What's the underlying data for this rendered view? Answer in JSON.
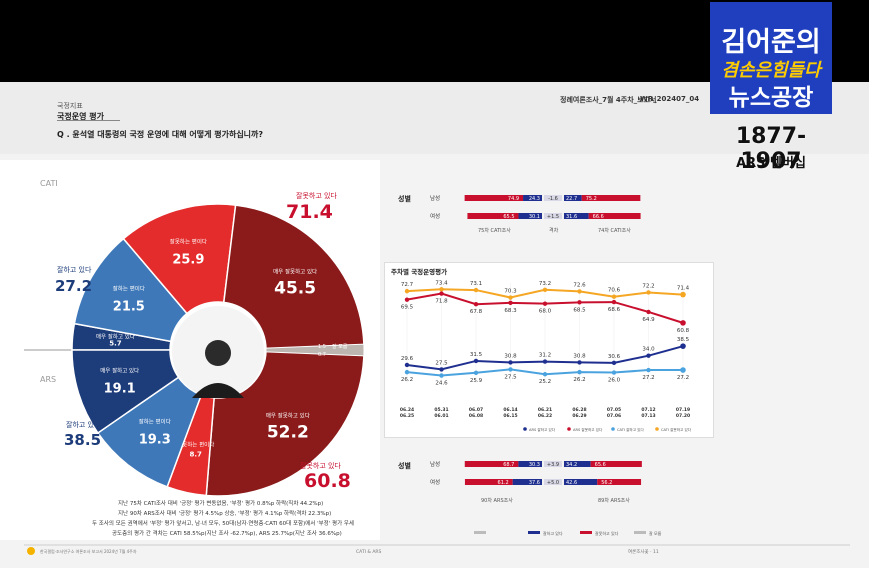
{
  "header": {
    "section": "국정지표",
    "title": "국정운영 평가",
    "question": "Q . 윤석열 대통령의 국정 운영에 대해 어떻게 평가하십니까?",
    "report_id": "정례여론조사_7월 4주차_보고서",
    "report_code": "WR_202407_04"
  },
  "brand": {
    "line1": "김어준의",
    "line2": "겸손은힘들다",
    "line3": "뉴스공장",
    "number": "1877-1907",
    "sub": "ARS 멤버십"
  },
  "donut": {
    "cati_label": "CATI",
    "ars_label": "ARS",
    "top_total_label": "잘못하고 있다",
    "top_total_value": "71.4",
    "bottom_total_label": "잘못하고 있다",
    "bottom_total_value": "60.8",
    "left_top_total_label": "잘하고 있다",
    "left_top_total_value": "27.2",
    "left_bottom_total_label": "잘하고 있다",
    "left_bottom_total_value": "38.5",
    "cati_segments": [
      {
        "label": "매우 잘못하고 있다",
        "value": "45.5",
        "color": "#8b1a1a"
      },
      {
        "label": "잘못하는 편이다",
        "value": "25.9",
        "color": "#e42c2c"
      },
      {
        "label": "잘하는 편이다",
        "value": "21.5",
        "color": "#3f78b9"
      },
      {
        "label": "매우 잘하고 있다",
        "value": "5.7",
        "color": "#1d3c7a"
      }
    ],
    "ars_segments": [
      {
        "label": "매우 잘못하고 있다",
        "value": "52.2",
        "color": "#8b1a1a"
      },
      {
        "label": "잘못하는 편이다",
        "value": "8.7",
        "color": "#e42c2c"
      },
      {
        "label": "잘하는 편이다",
        "value": "19.3",
        "color": "#3f78b9"
      },
      {
        "label": "매우 잘하고 있다",
        "value": "19.1",
        "color": "#1d3c7a"
      }
    ],
    "unknown_label": "잘 모름",
    "unknown_cati": "1.5",
    "unknown_ars": "0.7"
  },
  "notes": [
    "지난 75차 CATI조사 대비 '긍정' 평가 변동없음, '부정' 평가 0.8%p 하락(직차 44.2%p)",
    "지난 90차 ARS조사 대비 '긍정' 평가 4.5%p 상승, '부정' 평가 4.1%p 하락(격차 22.3%p)",
    "두 조사의 모든 권역에서 '부정' 평가 앞서고, 남·녀 모두, 50대(남자·연령층·CATI 60대 포함)에서 '부정' 평가 우세",
    "공도층의 평가 간 격차는 CATI 58.5%p(지난 조사 -62.7%p), ARS 25.7%p(지난 조사 36.6%p)"
  ],
  "gender_top": {
    "title": "성별",
    "rows": [
      {
        "label": "남성",
        "neg": "74.9",
        "pos": "24.3",
        "diff": "-1.6",
        "pos2": "22.7",
        "neg2": "75.2"
      },
      {
        "label": "여성",
        "neg": "65.5",
        "pos": "30.1",
        "diff": "+1.5",
        "pos2": "31.6",
        "neg2": "66.6"
      }
    ],
    "caption_left": "75차 CATI조사",
    "caption_mid": "격차",
    "caption_right": "74차 CATI조사"
  },
  "gender_bottom": {
    "title": "성별",
    "rows": [
      {
        "label": "남성",
        "neg": "68.7",
        "pos": "30.3",
        "diff": "+3.9",
        "pos2": "34.2",
        "neg2": "65.6"
      },
      {
        "label": "여성",
        "neg": "61.2",
        "pos": "37.6",
        "diff": "+5.0",
        "pos2": "42.6",
        "neg2": "56.2"
      }
    ],
    "caption_left": "90차 ARS조사",
    "caption_right": "89차 ARS조사"
  },
  "chart_data": {
    "type": "line",
    "title": "주차별 국정운영평가",
    "categories": [
      "06.24\n06.25",
      "05.31\n06.01",
      "06.07\n06.08",
      "06.14\n06.15",
      "06.21\n06.22",
      "06.28\n06.29",
      "07.05\n07.06",
      "07.12\n07.13",
      "07.19\n07.20"
    ],
    "series": [
      {
        "name": "ARS 잘하고 있다",
        "color": "#1f2f8f",
        "values": [
          29.6,
          27.5,
          31.5,
          30.8,
          31.2,
          30.8,
          30.6,
          34.0,
          38.5
        ]
      },
      {
        "name": "ARS 잘못하고 있다",
        "color": "#c8102e",
        "values": [
          69.5,
          71.8,
          67.8,
          68.3,
          68.0,
          68.5,
          68.6,
          64.9,
          60.8
        ]
      },
      {
        "name": "CATI 잘하고 있다",
        "color": "#4aa3df",
        "values": [
          26.2,
          24.6,
          25.9,
          27.5,
          25.2,
          26.2,
          26.0,
          27.2,
          27.2
        ]
      },
      {
        "name": "CATI 잘못하고 있다",
        "color": "#f5a623",
        "values": [
          72.7,
          73.4,
          73.1,
          70.3,
          73.2,
          72.6,
          70.6,
          72.2,
          71.4
        ]
      }
    ],
    "xlabel": "",
    "ylabel": ""
  },
  "footer": {
    "left": "한국갤럽·조사연구소 여론조사 보고서 2024년 7월 4주차",
    "center": "CATI & ARS",
    "right": "여론조사꽃 · 11"
  },
  "bottom_legend": [
    "",
    "잘하고 있다",
    "잘못하고 있다",
    "잘 모름"
  ]
}
